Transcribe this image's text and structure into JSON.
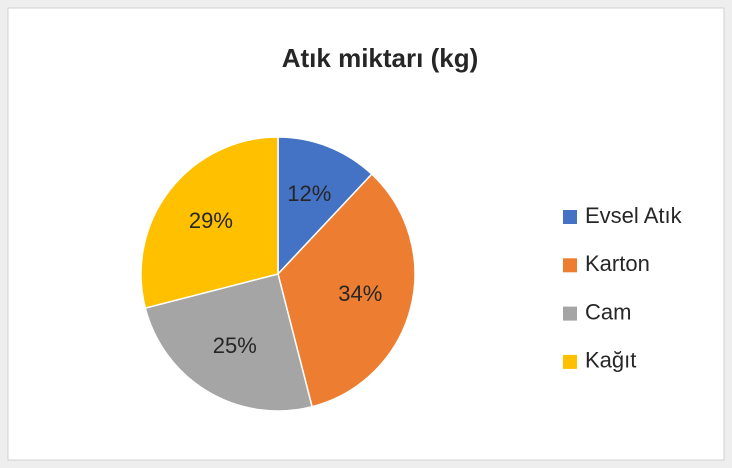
{
  "chart_data": {
    "type": "pie",
    "title": "Atık miktarı (kg)",
    "categories": [
      "Evsel Atık",
      "Karton",
      "Cam",
      "Kağıt"
    ],
    "values": [
      12,
      34,
      25,
      29
    ],
    "value_labels": [
      "12%",
      "34%",
      "25%",
      "29%"
    ],
    "colors": [
      "#4472c4",
      "#ed7d31",
      "#a5a5a5",
      "#ffc000"
    ],
    "legend": "right"
  }
}
